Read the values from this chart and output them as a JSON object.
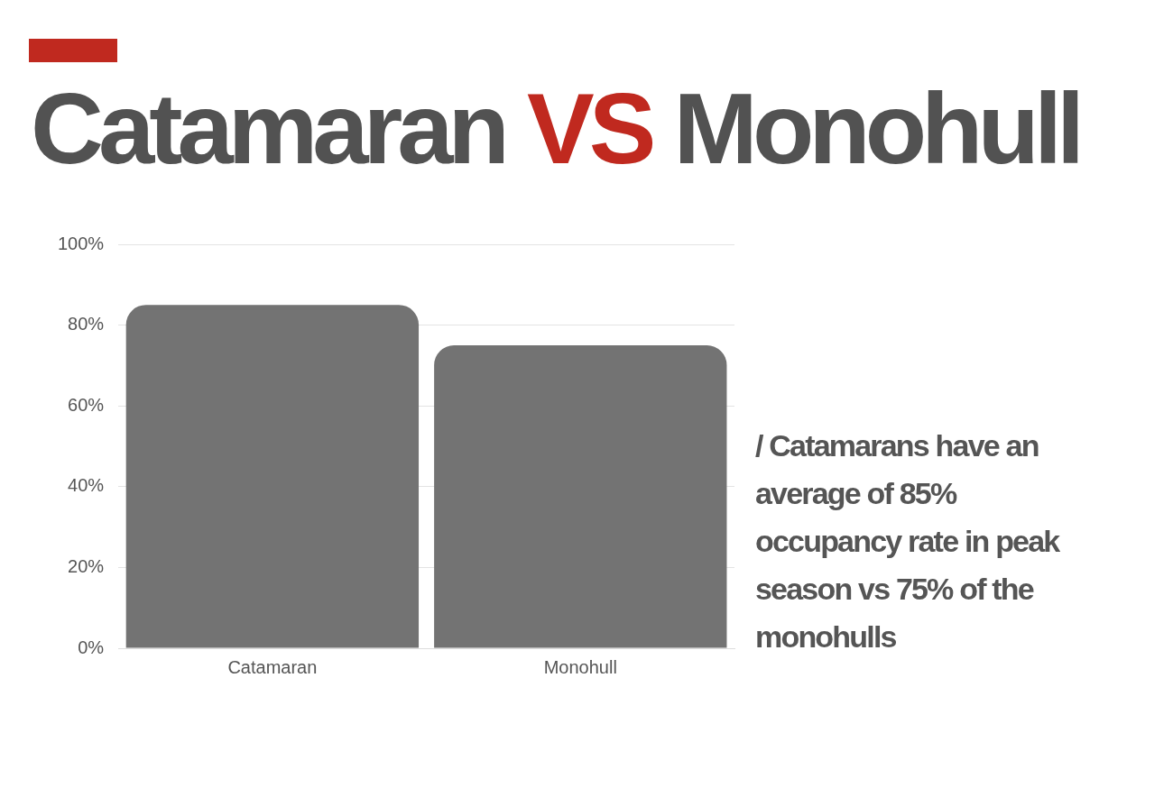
{
  "chart_data": {
    "type": "bar",
    "title": "Catamaran VS Monohull",
    "categories": [
      "Catamaran",
      "Monohull"
    ],
    "values": [
      85,
      75
    ],
    "color": "#737373",
    "ylim": [
      0,
      100
    ],
    "yticks": [
      {
        "value": 0,
        "label": "0%"
      },
      {
        "value": 20,
        "label": "20%"
      },
      {
        "value": 40,
        "label": "40%"
      },
      {
        "value": 60,
        "label": "60%"
      },
      {
        "value": 80,
        "label": "80%"
      },
      {
        "value": 100,
        "label": "100%"
      }
    ],
    "grid": "y",
    "legend": false,
    "annotations": [
      "/ Catamarans have an average of 85% occupancy rate in peak season vs 75% of the monohulls"
    ]
  }
}
